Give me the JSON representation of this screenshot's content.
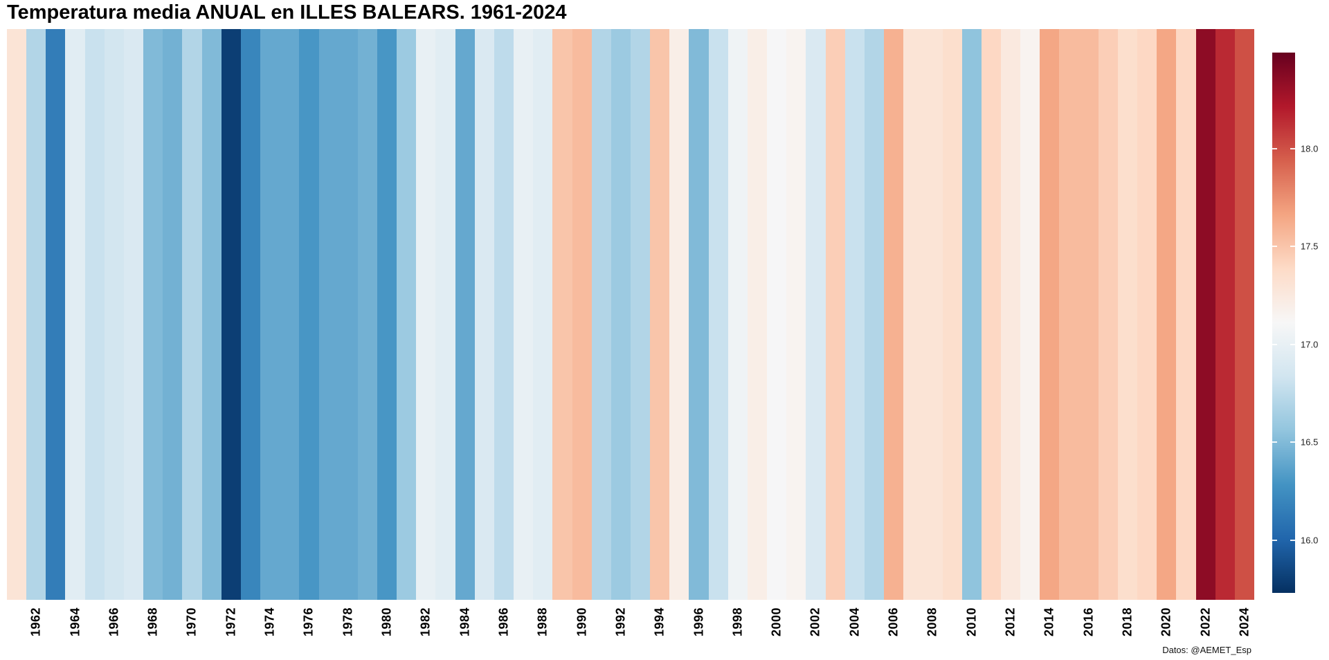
{
  "chart_data": {
    "type": "heatmap",
    "subtype": "warming-stripes",
    "title": "Temperatura media ANUAL en ILLES BALEARS. 1961-2024",
    "xlabel": "",
    "ylabel": "",
    "caption": "Datos: @AEMET_Esp",
    "grid": false,
    "legend_position": "right",
    "x_range": [
      1961,
      2024
    ],
    "years": [
      1961,
      1962,
      1963,
      1964,
      1965,
      1966,
      1967,
      1968,
      1969,
      1970,
      1971,
      1972,
      1973,
      1974,
      1975,
      1976,
      1977,
      1978,
      1979,
      1980,
      1981,
      1982,
      1983,
      1984,
      1985,
      1986,
      1987,
      1988,
      1989,
      1990,
      1991,
      1992,
      1993,
      1994,
      1995,
      1996,
      1997,
      1998,
      1999,
      2000,
      2001,
      2002,
      2003,
      2004,
      2005,
      2006,
      2007,
      2008,
      2009,
      2010,
      2011,
      2012,
      2013,
      2014,
      2015,
      2016,
      2017,
      2018,
      2019,
      2020,
      2021,
      2022,
      2023,
      2024
    ],
    "values": [
      17.3,
      16.7,
      16.15,
      16.95,
      16.8,
      16.85,
      16.9,
      16.5,
      16.45,
      16.7,
      16.5,
      15.8,
      16.2,
      16.4,
      16.4,
      16.3,
      16.4,
      16.4,
      16.45,
      16.3,
      16.6,
      17.0,
      16.95,
      16.4,
      16.9,
      16.75,
      17.0,
      16.95,
      17.5,
      17.55,
      16.7,
      16.6,
      16.7,
      17.5,
      17.2,
      16.5,
      16.8,
      17.05,
      17.2,
      17.1,
      17.15,
      16.9,
      17.45,
      16.8,
      16.7,
      17.6,
      17.3,
      17.3,
      17.35,
      16.55,
      17.4,
      17.25,
      17.15,
      17.65,
      17.55,
      17.55,
      17.45,
      17.35,
      17.4,
      17.65,
      17.4,
      18.35,
      18.15,
      18.0
    ],
    "x_tick_labels": [
      "1962",
      "1964",
      "1966",
      "1968",
      "1970",
      "1972",
      "1974",
      "1976",
      "1978",
      "1980",
      "1982",
      "1984",
      "1986",
      "1988",
      "1990",
      "1992",
      "1994",
      "1996",
      "1998",
      "2000",
      "2002",
      "2004",
      "2006",
      "2008",
      "2010",
      "2012",
      "2014",
      "2016",
      "2018",
      "2020",
      "2022",
      "2024"
    ],
    "colorbar": {
      "ticks": [
        18.0,
        17.5,
        17.0,
        16.5,
        16.0
      ],
      "tick_labels": [
        "18.0",
        "17.5",
        "17.0",
        "16.5",
        "16.0"
      ],
      "domain": [
        15.73,
        18.49
      ],
      "colors_low_to_high": [
        "#053061",
        "#2166ac",
        "#4393c3",
        "#92c5de",
        "#d1e5f0",
        "#f7f7f7",
        "#fddbc7",
        "#f4a582",
        "#d6604d",
        "#b2182b",
        "#67001f"
      ]
    }
  }
}
